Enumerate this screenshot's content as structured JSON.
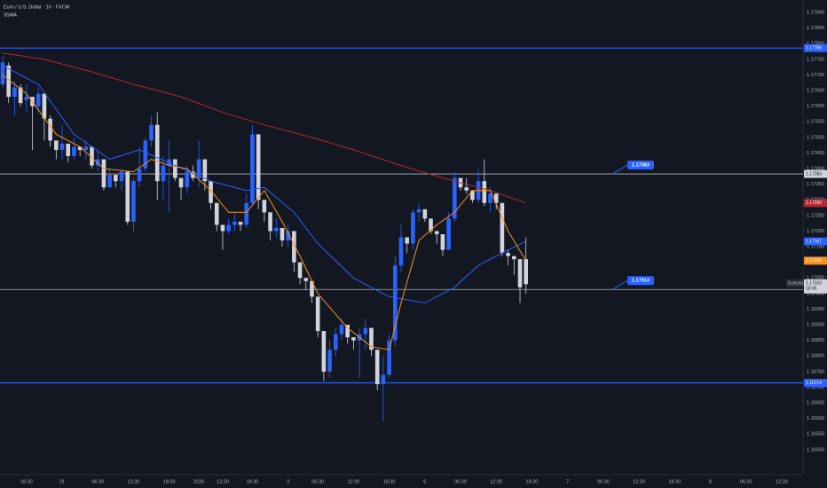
{
  "chart_data": {
    "type": "candlestick",
    "title": "Euro / U.S. Dollar · 1h · FXCM",
    "subtitle": "3SMA",
    "grid": false,
    "xlim": [
      -0.45,
      134.6
    ],
    "ylim": [
      1.1642,
      1.1794
    ],
    "yticks": [
      {
        "value": 1.165,
        "label": "1.16500"
      },
      {
        "value": 1.1655,
        "label": "1.16550"
      },
      {
        "value": 1.166,
        "label": "1.16600"
      },
      {
        "value": 1.1665,
        "label": "1.16650"
      },
      {
        "value": 1.167,
        "label": "1.16700"
      },
      {
        "value": 1.1675,
        "label": "1.16750"
      },
      {
        "value": 1.168,
        "label": "1.16800"
      },
      {
        "value": 1.1685,
        "label": "1.16850"
      },
      {
        "value": 1.169,
        "label": "1.16900"
      },
      {
        "value": 1.1695,
        "label": "1.16950"
      },
      {
        "value": 1.17,
        "label": "1.17000"
      },
      {
        "value": 1.1705,
        "label": "1.17050"
      },
      {
        "value": 1.171,
        "label": "1.17100"
      },
      {
        "value": 1.1715,
        "label": "1.17150"
      },
      {
        "value": 1.172,
        "label": "1.17200"
      },
      {
        "value": 1.1725,
        "label": "1.17250"
      },
      {
        "value": 1.173,
        "label": "1.17300"
      },
      {
        "value": 1.1735,
        "label": "1.17350"
      },
      {
        "value": 1.174,
        "label": "1.17400"
      },
      {
        "value": 1.1745,
        "label": "1.17450"
      },
      {
        "value": 1.175,
        "label": "1.17500"
      },
      {
        "value": 1.1755,
        "label": "1.17550"
      },
      {
        "value": 1.176,
        "label": "1.17600"
      },
      {
        "value": 1.1765,
        "label": "1.17650"
      },
      {
        "value": 1.177,
        "label": "1.17700"
      },
      {
        "value": 1.1775,
        "label": "1.17750"
      },
      {
        "value": 1.178,
        "label": "1.17800"
      },
      {
        "value": 1.1785,
        "label": "1.17850"
      },
      {
        "value": 1.179,
        "label": "1.17900"
      }
    ],
    "xticks": [
      {
        "value": 4,
        "label": "18:30"
      },
      {
        "value": 10,
        "label": "31"
      },
      {
        "value": 16,
        "label": "06:30"
      },
      {
        "value": 22,
        "label": "12:30"
      },
      {
        "value": 28,
        "label": "18:30"
      },
      {
        "value": 33,
        "label": "2026"
      },
      {
        "value": 37,
        "label": "13:30"
      },
      {
        "value": 42,
        "label": "18:30"
      },
      {
        "value": 48,
        "label": "3"
      },
      {
        "value": 53,
        "label": "06:30"
      },
      {
        "value": 59,
        "label": "12:30"
      },
      {
        "value": 65,
        "label": "18:30"
      },
      {
        "value": 71,
        "label": "6"
      },
      {
        "value": 77,
        "label": "06:30"
      },
      {
        "value": 83,
        "label": "12:30"
      },
      {
        "value": 89,
        "label": "18:30"
      },
      {
        "value": 95,
        "label": "7"
      },
      {
        "value": 101,
        "label": "06:30"
      },
      {
        "value": 107,
        "label": "12:30"
      },
      {
        "value": 113,
        "label": "18:30"
      },
      {
        "value": 119,
        "label": "8"
      },
      {
        "value": 125,
        "label": "06:30"
      },
      {
        "value": 131,
        "label": "12:30"
      }
    ],
    "up_color": "#2962ff",
    "down_color": "#d1d4dc",
    "open": [
      1.1767,
      1.1773,
      1.1763,
      1.1766,
      1.1762,
      1.1763,
      1.176,
      1.1764,
      1.1756,
      1.1749,
      1.1746,
      1.1748,
      1.1744,
      1.1747,
      1.1746,
      1.1747,
      1.1741,
      1.1743,
      1.1734,
      1.1738,
      1.1736,
      1.1739,
      1.1723,
      1.1736,
      1.174,
      1.1749,
      1.1754,
      1.1736,
      1.1741,
      1.1743,
      1.1737,
      1.1734,
      1.1739,
      1.1737,
      1.1743,
      1.1736,
      1.1729,
      1.1722,
      1.172,
      1.1722,
      1.1723,
      1.1722,
      1.1729,
      1.1751,
      1.173,
      1.1726,
      1.172,
      1.1721,
      1.1717,
      1.172,
      1.171,
      1.1705,
      1.1704,
      1.1699,
      1.1688,
      1.1675,
      1.1682,
      1.1687,
      1.169,
      1.1686,
      1.1685,
      1.1687,
      1.1689,
      1.1682,
      1.1671,
      1.1674,
      1.1685,
      1.1709,
      1.1718,
      1.1716,
      1.1726,
      1.1727,
      1.1724,
      1.172,
      1.1719,
      1.1714,
      1.1724,
      1.1737,
      1.1734,
      1.1733,
      1.173,
      1.1736,
      1.1729,
      1.1732,
      1.1729,
      1.1713,
      1.1712,
      1.1711,
      1.1711
    ],
    "high": [
      1.1776,
      1.1774,
      1.1768,
      1.1767,
      1.1767,
      1.1763,
      1.1766,
      1.1764,
      1.1757,
      1.1749,
      1.1754,
      1.1748,
      1.175,
      1.1747,
      1.1749,
      1.1747,
      1.1746,
      1.1743,
      1.174,
      1.1738,
      1.174,
      1.1739,
      1.1737,
      1.1747,
      1.175,
      1.1757,
      1.1758,
      1.1744,
      1.1749,
      1.1743,
      1.1737,
      1.1741,
      1.1741,
      1.1749,
      1.1743,
      1.1736,
      1.1729,
      1.1722,
      1.1724,
      1.1726,
      1.1723,
      1.1732,
      1.1754,
      1.1751,
      1.173,
      1.1726,
      1.1724,
      1.1721,
      1.1722,
      1.172,
      1.171,
      1.1705,
      1.1704,
      1.1699,
      1.1688,
      1.1685,
      1.1689,
      1.1692,
      1.169,
      1.1686,
      1.1689,
      1.1692,
      1.1689,
      1.1682,
      1.168,
      1.1687,
      1.1712,
      1.1722,
      1.1718,
      1.1727,
      1.1729,
      1.1727,
      1.1724,
      1.172,
      1.1719,
      1.1726,
      1.1739,
      1.1737,
      1.1737,
      1.1733,
      1.174,
      1.1743,
      1.1734,
      1.1732,
      1.1729,
      1.1714,
      1.1712,
      1.1711,
      1.1718
    ],
    "low": [
      1.1766,
      1.1761,
      1.1757,
      1.176,
      1.1758,
      1.1746,
      1.1758,
      1.1749,
      1.1747,
      1.1743,
      1.1743,
      1.1742,
      1.1743,
      1.1744,
      1.1743,
      1.174,
      1.1739,
      1.1733,
      1.1734,
      1.1734,
      1.1733,
      1.1722,
      1.172,
      1.1734,
      1.1739,
      1.1747,
      1.173,
      1.173,
      1.1726,
      1.1736,
      1.173,
      1.1732,
      1.1736,
      1.1734,
      1.1733,
      1.1727,
      1.172,
      1.1714,
      1.1719,
      1.172,
      1.172,
      1.1721,
      1.1728,
      1.1727,
      1.1723,
      1.1717,
      1.1718,
      1.1715,
      1.1715,
      1.1707,
      1.1703,
      1.1701,
      1.1697,
      1.1686,
      1.1672,
      1.1673,
      1.168,
      1.1685,
      1.1684,
      1.1682,
      1.1673,
      1.1682,
      1.168,
      1.1669,
      1.1659,
      1.1673,
      1.1683,
      1.1707,
      1.1713,
      1.1714,
      1.1723,
      1.1723,
      1.1719,
      1.1716,
      1.1712,
      1.1714,
      1.1723,
      1.1733,
      1.1732,
      1.1729,
      1.1729,
      1.1728,
      1.1726,
      1.1727,
      1.1712,
      1.1709,
      1.1706,
      1.1697,
      1.17
    ],
    "close": [
      1.1774,
      1.1763,
      1.1766,
      1.1761,
      1.1763,
      1.176,
      1.1764,
      1.1756,
      1.1749,
      1.1746,
      1.1748,
      1.1744,
      1.1747,
      1.1746,
      1.1747,
      1.1741,
      1.1743,
      1.1734,
      1.1738,
      1.1736,
      1.1739,
      1.1723,
      1.1736,
      1.174,
      1.1749,
      1.1754,
      1.1736,
      1.1741,
      1.1743,
      1.1737,
      1.1734,
      1.1739,
      1.1737,
      1.1743,
      1.1736,
      1.1729,
      1.1722,
      1.172,
      1.1722,
      1.1723,
      1.1722,
      1.1729,
      1.1751,
      1.173,
      1.1726,
      1.172,
      1.1721,
      1.1717,
      1.172,
      1.171,
      1.1705,
      1.1704,
      1.1699,
      1.1688,
      1.1675,
      1.1682,
      1.1687,
      1.169,
      1.1686,
      1.1685,
      1.1687,
      1.1689,
      1.1682,
      1.1671,
      1.1674,
      1.1685,
      1.1709,
      1.1718,
      1.1716,
      1.1726,
      1.1727,
      1.1724,
      1.172,
      1.1719,
      1.1714,
      1.1724,
      1.1737,
      1.1734,
      1.1733,
      1.173,
      1.1736,
      1.1729,
      1.1732,
      1.1729,
      1.1713,
      1.1712,
      1.1711,
      1.1702,
      1.1703
    ],
    "series": [
      {
        "color": "#b22833",
        "x": [
          0,
          7,
          15,
          22,
          30,
          37,
          44,
          52,
          59,
          67,
          74,
          82,
          88
        ],
        "values": [
          1.1777,
          1.1775,
          1.1771,
          1.1767,
          1.1763,
          1.1758,
          1.1754,
          1.175,
          1.1746,
          1.1741,
          1.1737,
          1.1733,
          1.1729
        ],
        "last_label": "1.17290"
      },
      {
        "color": "#2962ff",
        "x": [
          0,
          6,
          12,
          18,
          23,
          29,
          35,
          41,
          44,
          49,
          53,
          59,
          65,
          71,
          76,
          80,
          85,
          88
        ],
        "values": [
          1.1773,
          1.1767,
          1.1751,
          1.1743,
          1.1746,
          1.1741,
          1.1736,
          1.1733,
          1.1734,
          1.1726,
          1.1716,
          1.1705,
          1.1699,
          1.1697,
          1.1702,
          1.1709,
          1.1714,
          1.17167
        ],
        "last_label": "1.17167"
      },
      {
        "color": "#f7931a",
        "x": [
          0,
          4,
          9,
          13,
          17,
          22,
          25,
          28,
          31,
          35,
          38,
          41,
          44,
          47,
          50,
          53,
          58,
          62,
          65,
          67,
          70,
          73,
          76,
          79,
          82,
          85,
          88
        ],
        "values": [
          1.177,
          1.1764,
          1.1751,
          1.1747,
          1.174,
          1.1739,
          1.1743,
          1.1741,
          1.174,
          1.1733,
          1.1726,
          1.1726,
          1.1733,
          1.1723,
          1.1712,
          1.17,
          1.1689,
          1.1683,
          1.1682,
          1.1697,
          1.1717,
          1.1722,
          1.1726,
          1.1733,
          1.1733,
          1.172,
          1.17105
        ],
        "last_label": "1.17105"
      }
    ],
    "price_lines": [
      {
        "value": 1.17786,
        "label": "1.17786",
        "color": "#2962ff",
        "badge": false
      },
      {
        "value": 1.17383,
        "label": "1.17383",
        "color": "#b2b5be",
        "badge": true
      },
      {
        "value": 1.17013,
        "label": "1.17013",
        "color": "#b2b5be",
        "badge": true
      },
      {
        "value": 1.16714,
        "label": "1.16714",
        "color": "#2962ff",
        "badge": false
      }
    ],
    "last_price": {
      "symbol": "EURUSD",
      "value": 1.17033,
      "label": "1.17033",
      "countdown": "18:05"
    }
  }
}
